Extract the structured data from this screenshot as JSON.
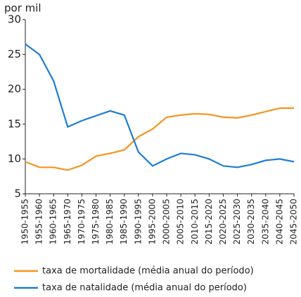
{
  "chart_data": {
    "type": "line",
    "y_label": "por mil",
    "categories": [
      "1950-1955",
      "1955-1960",
      "1960-1965",
      "1965-1970",
      "1970-1975",
      "1975-1980",
      "1980-1985",
      "1985-1990",
      "1990-1995",
      "1995-2000",
      "2000-2005",
      "2005-2010",
      "2010-2015",
      "2015-2020",
      "2020-2025",
      "2025-2030",
      "2030-2035",
      "2035-2040",
      "2040-2045",
      "2045-2050"
    ],
    "series": [
      {
        "name": "taxa de mortalidade (média anual do período)",
        "color": "#f7931e",
        "values": [
          9.6,
          8.8,
          8.8,
          8.4,
          9.1,
          10.4,
          10.8,
          11.3,
          13.2,
          14.3,
          16.0,
          16.3,
          16.5,
          16.4,
          16.0,
          15.9,
          16.3,
          16.8,
          17.3,
          17.3
        ]
      },
      {
        "name": "taxa de natalidade (média anual do período)",
        "color": "#1c7cd5",
        "values": [
          26.5,
          25.0,
          21.2,
          14.6,
          15.5,
          16.2,
          16.9,
          16.3,
          11.0,
          9.0,
          10.0,
          10.8,
          10.6,
          10.0,
          9.0,
          8.8,
          9.2,
          9.8,
          10.0,
          9.6
        ]
      }
    ],
    "ylim": [
      5,
      30
    ],
    "yticks": [
      5,
      10,
      15,
      20,
      25,
      30
    ],
    "grid": false
  }
}
